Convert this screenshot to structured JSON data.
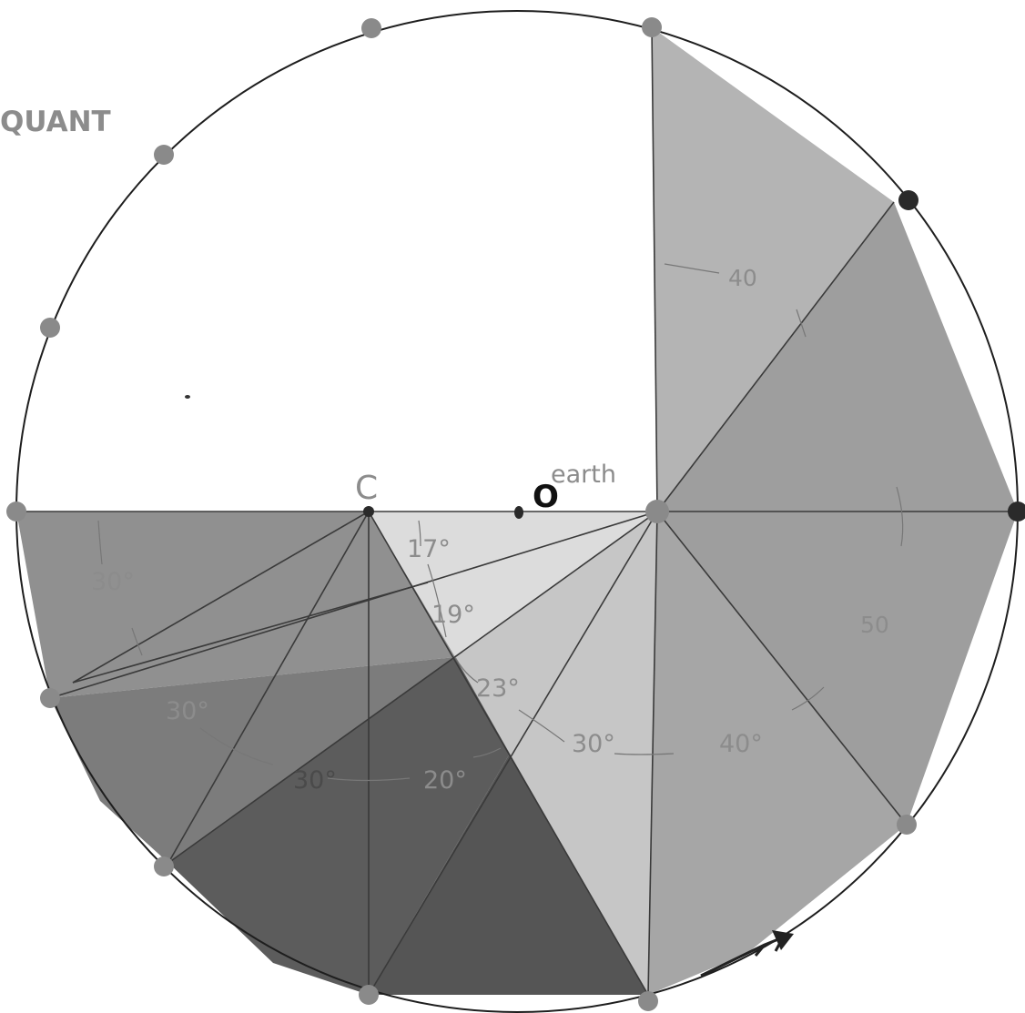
{
  "labels": {
    "title_fragment": "QUANT",
    "center_letter": "C",
    "observer_letter": "O",
    "observer_name": "earth",
    "angle_17": "17°",
    "angle_19": "19°",
    "angle_23": "23°",
    "angle_30_mid": "30°",
    "angle_40_bottom": "40°",
    "angle_40_top": "40",
    "angle_50_right": "50",
    "angle_30_left_upper": "30°",
    "angle_30_left_lower": "30°",
    "angle_30_bottom": "30°",
    "angle_20_bottom": "20°"
  },
  "colors": {
    "wedge_top_right": "#b4b4b4",
    "wedge_right": "#9e9e9e",
    "wedge_bottom_right": "#a6a6a6",
    "wedge_light": "#dcdcdc",
    "wedge_mid_light": "#c6c6c6",
    "wedge_left_upper": "#909090",
    "wedge_left_lower": "#7c7c7c",
    "wedge_dark_bottom": "#5c5c5c",
    "wedge_darkest": "#555555",
    "dot_grey": "#8a8a8a",
    "dot_dark": "#2a2a2a",
    "line": "#3a3a3a",
    "label_grey": "#8c8c8c"
  }
}
